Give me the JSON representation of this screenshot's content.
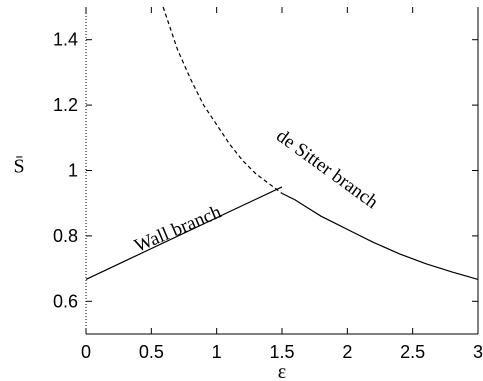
{
  "chart_data": {
    "type": "line",
    "xlabel": "ε",
    "ylabel": "S̄",
    "xlim": [
      0,
      3
    ],
    "ylim": [
      0.5,
      1.5
    ],
    "x_ticks": [
      0,
      0.5,
      1,
      1.5,
      2,
      2.5,
      3
    ],
    "x_tick_labels": [
      "0",
      "0.5",
      "1",
      "1.5",
      "2",
      "2.5",
      "3"
    ],
    "y_ticks": [
      0.6,
      0.8,
      1.0,
      1.2,
      1.4
    ],
    "y_tick_labels": [
      "0.6",
      "0.8",
      "1",
      "1.2",
      "1.4"
    ],
    "grid": false,
    "series": [
      {
        "name": "Wall branch",
        "style": "solid",
        "x": [
          0,
          1.5
        ],
        "y": [
          0.667,
          0.95
        ]
      },
      {
        "name": "de Sitter branch",
        "style": "dashed",
        "x": [
          0.59,
          0.7,
          0.8,
          0.9,
          1.0,
          1.1,
          1.2,
          1.3,
          1.4,
          1.5
        ],
        "y": [
          1.5,
          1.37,
          1.28,
          1.2,
          1.14,
          1.08,
          1.03,
          0.99,
          0.96,
          0.93
        ]
      },
      {
        "name": "de Sitter branch",
        "style": "solid",
        "x": [
          1.5,
          1.6,
          1.7,
          1.8,
          1.9,
          2.0,
          2.2,
          2.4,
          2.6,
          2.8,
          3.0
        ],
        "y": [
          0.93,
          0.91,
          0.885,
          0.86,
          0.84,
          0.82,
          0.78,
          0.745,
          0.715,
          0.69,
          0.667
        ]
      }
    ],
    "annotations": [
      {
        "text": "Wall branch"
      },
      {
        "text": "de Sitter branch"
      }
    ]
  }
}
